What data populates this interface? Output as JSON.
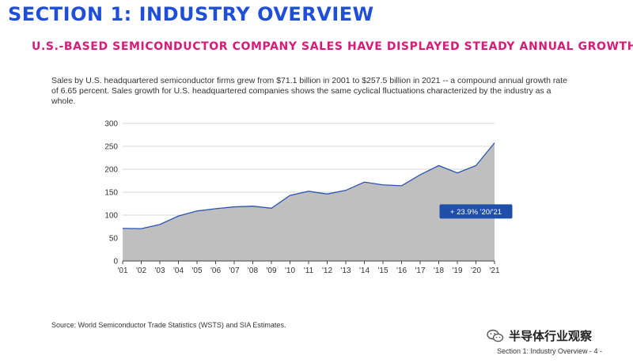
{
  "header": {
    "section_title": "SECTION 1: INDUSTRY OVERVIEW",
    "subtitle": "U.S.-BASED SEMICONDUCTOR COMPANY SALES HAVE DISPLAYED STEADY ANNUAL GROWTH"
  },
  "description": "Sales by U.S. headquartered semiconductor firms grew from $71.1 billion in 2001 to $257.5 billion in 2021 -- a compound annual growth rate of 6.65 percent. Sales growth for U.S. headquartered companies shows the same cyclical fluctuations characterized by the industry as a whole.",
  "chart_data": {
    "type": "area",
    "x": [
      "'01",
      "'02",
      "'03",
      "'04",
      "'05",
      "'06",
      "'07",
      "'08",
      "'09",
      "'10",
      "'11",
      "'12",
      "'13",
      "'14",
      "'15",
      "'16",
      "'17",
      "'18",
      "'19",
      "'20",
      "'21"
    ],
    "series": [
      {
        "values": [
          71.1,
          70.5,
          79.5,
          98,
          109,
          114,
          118,
          119.5,
          115,
          143,
          152,
          146,
          154,
          172,
          166,
          164,
          188,
          208,
          192,
          208,
          257.5
        ]
      }
    ],
    "ylim": [
      0,
      300
    ],
    "yticks": [
      0,
      50,
      100,
      150,
      200,
      250,
      300
    ],
    "grid": true,
    "fill_color": "#bfbfbf",
    "line_color": "#2b55b5",
    "annotation": {
      "text": "+ 23.9% '20/'21",
      "x_index": 19,
      "y": 108,
      "color": "#1f4fa8"
    }
  },
  "source_note": "Source: World Semiconductor Trade Statistics (WSTS) and SIA Estimates.",
  "watermark": {
    "text": "半导体行业观察",
    "icon": "wechat-icon"
  },
  "footer": "Section 1: Industry Overview - 4 -"
}
